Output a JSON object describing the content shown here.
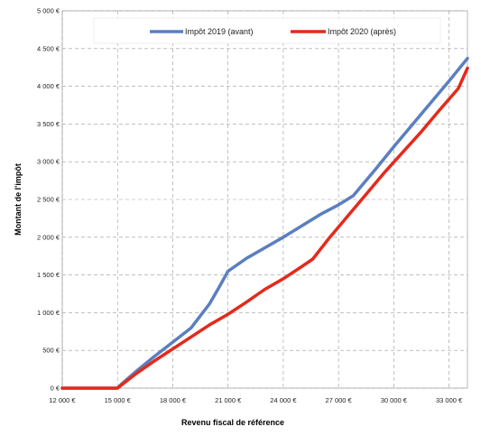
{
  "chart_data": {
    "type": "line",
    "xlabel": "Revenu fiscal de référence",
    "ylabel": "Montant de l'impôt",
    "xlim": [
      12000,
      34000
    ],
    "ylim": [
      0,
      5000
    ],
    "x_ticks": [
      12000,
      15000,
      18000,
      21000,
      24000,
      27000,
      30000,
      33000
    ],
    "x_tick_labels": [
      "12 000 €",
      "15 000 €",
      "18 000 €",
      "21 000 €",
      "24 000 €",
      "27 000 €",
      "30 000 €",
      "33 000 €"
    ],
    "y_ticks": [
      0,
      500,
      1000,
      1500,
      2000,
      2500,
      3000,
      3500,
      4000,
      4500,
      5000
    ],
    "y_tick_labels": [
      "0 €",
      "500 €",
      "1 000 €",
      "1 500 €",
      "2 000 €",
      "2 500 €",
      "3 000 €",
      "3 500 €",
      "4 000 €",
      "4 500 €",
      "5 000 €"
    ],
    "grid": true,
    "legend_position": "top",
    "series": [
      {
        "name": "Impôt 2019 (avant)",
        "color": "#5b7fbf",
        "x": [
          12000,
          15000,
          15200,
          16000,
          17000,
          18000,
          19000,
          20000,
          20500,
          21000,
          22000,
          23000,
          24000,
          25000,
          26000,
          27000,
          27800,
          29000,
          30000,
          31000,
          32000,
          33000,
          34000
        ],
        "y": [
          0,
          0,
          50,
          220,
          420,
          610,
          800,
          1120,
          1330,
          1550,
          1720,
          1860,
          2000,
          2150,
          2300,
          2430,
          2550,
          2900,
          3200,
          3490,
          3780,
          4070,
          4370
        ]
      },
      {
        "name": "Impôt 2020 (après)",
        "color": "#e32a1c",
        "x": [
          12000,
          15000,
          15200,
          16000,
          17000,
          18000,
          19000,
          20000,
          21000,
          22000,
          23000,
          24000,
          25000,
          25600,
          26500,
          27500,
          28500,
          29500,
          30500,
          31500,
          32500,
          33500,
          34000
        ],
        "y": [
          0,
          0,
          40,
          190,
          360,
          520,
          680,
          840,
          980,
          1140,
          1310,
          1450,
          1610,
          1710,
          1990,
          2280,
          2570,
          2860,
          3130,
          3400,
          3690,
          3970,
          4240
        ]
      }
    ]
  }
}
